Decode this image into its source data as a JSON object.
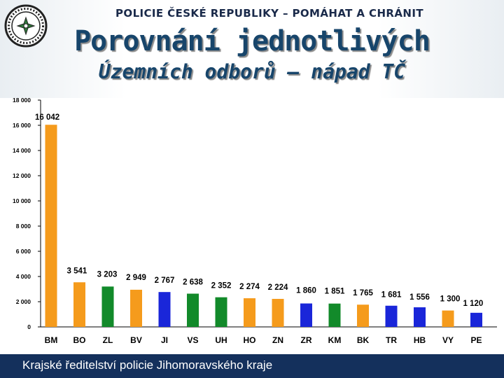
{
  "header": {
    "org": "POLICIE ČESKÉ REPUBLIKY  –  POMÁHAT A CHRÁNIT",
    "title_line1": "Porovnání jednotlivých",
    "title_line2": "Územních odborů – nápad TČ"
  },
  "footer": {
    "text": "Krajské ředitelství policie Jihomoravského kraje"
  },
  "logo": {
    "icon": "police-badge-icon"
  },
  "colors": {
    "orange": "#f59b1c",
    "green": "#128a2a",
    "blue": "#1a26d9",
    "footer": "#14305c",
    "title": "#17456b"
  },
  "chart_data": {
    "type": "bar",
    "title": "",
    "xlabel": "",
    "ylabel": "",
    "ylim": [
      0,
      18000
    ],
    "y_ticks": [
      "0",
      "2 000",
      "4 000",
      "6 000",
      "8 000",
      "10 000",
      "12 000",
      "14 000",
      "16 000",
      "18 000"
    ],
    "y_tick_values": [
      0,
      2000,
      4000,
      6000,
      8000,
      10000,
      12000,
      14000,
      16000,
      18000
    ],
    "grid": false,
    "legend": "none",
    "categories": [
      "BM",
      "BO",
      "ZL",
      "BV",
      "JI",
      "VS",
      "UH",
      "HO",
      "ZN",
      "ZR",
      "KM",
      "BK",
      "TR",
      "HB",
      "VY",
      "PE"
    ],
    "values": [
      16042,
      3541,
      3203,
      2949,
      2767,
      2638,
      2352,
      2274,
      2224,
      1860,
      1851,
      1765,
      1681,
      1556,
      1300,
      1120
    ],
    "labels": [
      "16 042",
      "3 541",
      "3 203",
      "2 949",
      "2 767",
      "2 638",
      "2 352",
      "2 274",
      "2 224",
      "1 860",
      "1 851",
      "1 765",
      "1 681",
      "1 556",
      "1 300",
      "1 120"
    ],
    "bar_colors": [
      "orange",
      "orange",
      "green",
      "orange",
      "blue",
      "green",
      "green",
      "orange",
      "orange",
      "blue",
      "green",
      "orange",
      "blue",
      "blue",
      "orange",
      "blue"
    ]
  }
}
